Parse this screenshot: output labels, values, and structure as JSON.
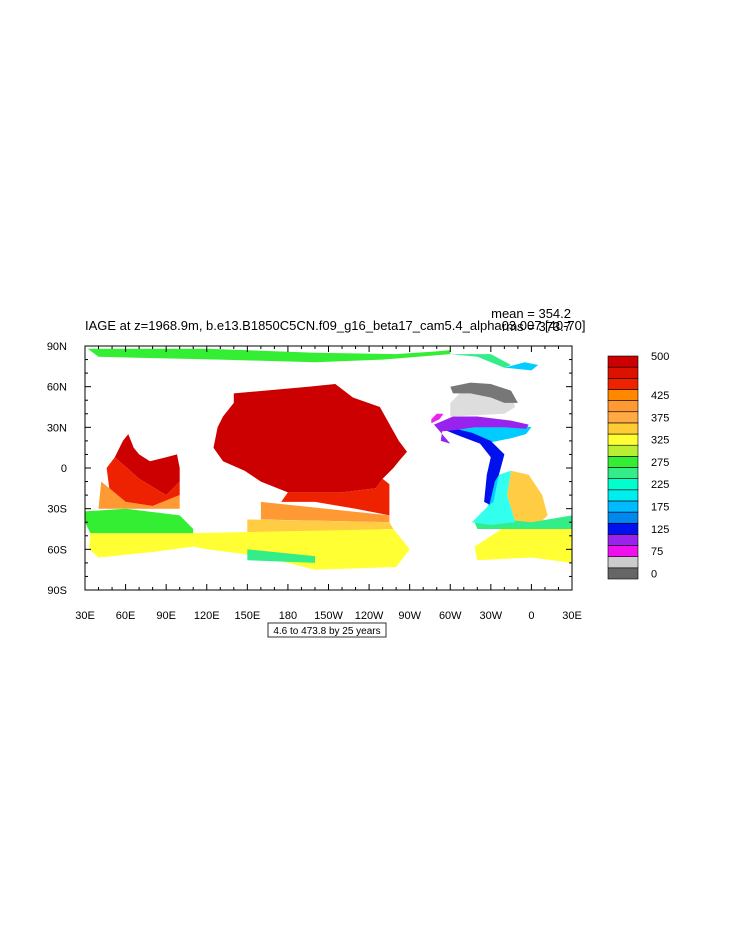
{
  "figure": {
    "title": "IAGE at z=1968.9m, b.e13.B1850C5CN.f09_g16_beta17_cam5.4_alpha03.007 [40-70]",
    "stats": {
      "mean": "mean = 354.2",
      "rms": "rms = 373.7"
    },
    "contour_info": "4.6 to 473.8 by 25 years"
  },
  "map": {
    "type": "filled-contour-map",
    "projection": "cylindrical-equidistant",
    "lon_range": [
      30,
      390
    ],
    "lat_range": [
      -90,
      90
    ],
    "lon_ticks": [
      {
        "value": 30,
        "label": "30E"
      },
      {
        "value": 60,
        "label": "60E"
      },
      {
        "value": 90,
        "label": "90E"
      },
      {
        "value": 120,
        "label": "120E"
      },
      {
        "value": 150,
        "label": "150E"
      },
      {
        "value": 180,
        "label": "180"
      },
      {
        "value": 210,
        "label": "150W"
      },
      {
        "value": 240,
        "label": "120W"
      },
      {
        "value": 270,
        "label": "90W"
      },
      {
        "value": 300,
        "label": "60W"
      },
      {
        "value": 330,
        "label": "30W"
      },
      {
        "value": 360,
        "label": "0"
      },
      {
        "value": 390,
        "label": "30E"
      }
    ],
    "lat_ticks": [
      {
        "value": 90,
        "label": "90N"
      },
      {
        "value": 60,
        "label": "60N"
      },
      {
        "value": 30,
        "label": "30N"
      },
      {
        "value": 0,
        "label": "0"
      },
      {
        "value": -30,
        "label": "30S"
      },
      {
        "value": -60,
        "label": "60S"
      },
      {
        "value": -90,
        "label": "90S"
      }
    ],
    "regions": [
      {
        "level": 475,
        "color": "#cc0000",
        "pts": [
          [
            140,
            55
          ],
          [
            195,
            60
          ],
          [
            215,
            62
          ],
          [
            228,
            52
          ],
          [
            248,
            45
          ],
          [
            262,
            20
          ],
          [
            268,
            12
          ],
          [
            262,
            5
          ],
          [
            258,
            0
          ],
          [
            250,
            -8
          ],
          [
            245,
            -15
          ],
          [
            220,
            -18
          ],
          [
            180,
            -18
          ],
          [
            160,
            -10
          ],
          [
            148,
            -2
          ],
          [
            132,
            5
          ],
          [
            125,
            15
          ],
          [
            128,
            30
          ],
          [
            132,
            38
          ],
          [
            140,
            48
          ]
        ]
      },
      {
        "level": 475,
        "color": "#cc0000",
        "pts": [
          [
            52,
            8
          ],
          [
            58,
            20
          ],
          [
            62,
            25
          ],
          [
            66,
            15
          ],
          [
            70,
            10
          ],
          [
            78,
            5
          ],
          [
            90,
            8
          ],
          [
            98,
            10
          ],
          [
            100,
            0
          ],
          [
            100,
            -10
          ],
          [
            90,
            -20
          ],
          [
            70,
            -8
          ]
        ]
      },
      {
        "level": 450,
        "color": "#ee2200",
        "pts": [
          [
            180,
            -18
          ],
          [
            220,
            -18
          ],
          [
            245,
            -15
          ],
          [
            250,
            -8
          ],
          [
            255,
            -12
          ],
          [
            255,
            -35
          ],
          [
            230,
            -30
          ],
          [
            200,
            -25
          ],
          [
            175,
            -25
          ]
        ]
      },
      {
        "level": 450,
        "color": "#ee2200",
        "pts": [
          [
            46,
            0
          ],
          [
            52,
            8
          ],
          [
            70,
            -8
          ],
          [
            90,
            -20
          ],
          [
            100,
            -10
          ],
          [
            100,
            -20
          ],
          [
            80,
            -28
          ],
          [
            60,
            -25
          ],
          [
            48,
            -15
          ]
        ]
      },
      {
        "level": 375,
        "color": "#ff9933",
        "pts": [
          [
            42,
            -10
          ],
          [
            48,
            -15
          ],
          [
            60,
            -25
          ],
          [
            80,
            -28
          ],
          [
            100,
            -20
          ],
          [
            100,
            -30
          ],
          [
            60,
            -30
          ],
          [
            40,
            -30
          ]
        ]
      },
      {
        "level": 375,
        "color": "#ff9933",
        "pts": [
          [
            160,
            -25
          ],
          [
            255,
            -35
          ],
          [
            255,
            -40
          ],
          [
            160,
            -38
          ]
        ]
      },
      {
        "level": 350,
        "color": "#ffcc44",
        "pts": [
          [
            150,
            -38
          ],
          [
            255,
            -40
          ],
          [
            258,
            -45
          ],
          [
            150,
            -48
          ]
        ]
      },
      {
        "level": 325,
        "color": "#ffff33",
        "pts": [
          [
            110,
            -48
          ],
          [
            258,
            -45
          ],
          [
            270,
            -60
          ],
          [
            260,
            -73
          ],
          [
            200,
            -75
          ],
          [
            160,
            -65
          ],
          [
            120,
            -60
          ],
          [
            110,
            -58
          ]
        ]
      },
      {
        "level": 325,
        "color": "#ffff33",
        "pts": [
          [
            34,
            -48
          ],
          [
            110,
            -48
          ],
          [
            110,
            -58
          ],
          [
            80,
            -62
          ],
          [
            40,
            -66
          ],
          [
            33,
            -60
          ]
        ]
      },
      {
        "level": 275,
        "color": "#33ee33",
        "pts": [
          [
            30,
            -32
          ],
          [
            60,
            -30
          ],
          [
            100,
            -35
          ],
          [
            110,
            -45
          ],
          [
            110,
            -48
          ],
          [
            34,
            -48
          ],
          [
            30,
            -40
          ]
        ]
      },
      {
        "level": 250,
        "color": "#33ee88",
        "pts": [
          [
            150,
            -60
          ],
          [
            200,
            -65
          ],
          [
            200,
            -70
          ],
          [
            150,
            -68
          ]
        ]
      },
      {
        "level": 325,
        "color": "#ffff33",
        "pts": [
          [
            338,
            -45
          ],
          [
            360,
            -42
          ],
          [
            390,
            -40
          ],
          [
            390,
            -70
          ],
          [
            360,
            -66
          ],
          [
            320,
            -68
          ],
          [
            318,
            -58
          ]
        ]
      },
      {
        "level": 300,
        "color": "#ffcc44",
        "pts": [
          [
            345,
            -2
          ],
          [
            358,
            -5
          ],
          [
            368,
            -20
          ],
          [
            372,
            -35
          ],
          [
            365,
            -42
          ],
          [
            348,
            -40
          ],
          [
            342,
            -20
          ]
        ]
      },
      {
        "level": 250,
        "color": "#33ee88",
        "pts": [
          [
            318,
            -40
          ],
          [
            340,
            -38
          ],
          [
            360,
            -40
          ],
          [
            390,
            -35
          ],
          [
            390,
            -45
          ],
          [
            360,
            -45
          ],
          [
            320,
            -45
          ]
        ]
      },
      {
        "level": 225,
        "color": "#33ffee",
        "pts": [
          [
            316,
            -40
          ],
          [
            328,
            -28
          ],
          [
            336,
            -5
          ],
          [
            345,
            -2
          ],
          [
            342,
            -20
          ],
          [
            348,
            -40
          ],
          [
            330,
            -42
          ]
        ]
      },
      {
        "level": 175,
        "color": "#00ccff",
        "pts": [
          [
            294,
            30
          ],
          [
            310,
            26
          ],
          [
            325,
            18
          ],
          [
            345,
            22
          ],
          [
            356,
            25
          ],
          [
            360,
            30
          ],
          [
            345,
            33
          ],
          [
            320,
            36
          ],
          [
            300,
            34
          ]
        ]
      },
      {
        "level": 175,
        "color": "#00ccff",
        "pts": [
          [
            328,
            -28
          ],
          [
            333,
            -10
          ],
          [
            334,
            5
          ],
          [
            336,
            -5
          ],
          [
            332,
            -25
          ]
        ]
      },
      {
        "level": 125,
        "color": "#0011ee",
        "pts": [
          [
            299,
            30
          ],
          [
            316,
            26
          ],
          [
            330,
            20
          ],
          [
            340,
            10
          ],
          [
            336,
            -5
          ],
          [
            333,
            -10
          ],
          [
            329,
            -27
          ],
          [
            325,
            -25
          ],
          [
            327,
            -5
          ],
          [
            330,
            8
          ],
          [
            322,
            18
          ],
          [
            306,
            24
          ],
          [
            296,
            28
          ]
        ]
      },
      {
        "level": 75,
        "color": "#9922ee",
        "pts": [
          [
            288,
            32
          ],
          [
            302,
            38
          ],
          [
            320,
            38
          ],
          [
            345,
            35
          ],
          [
            358,
            32
          ],
          [
            356,
            29
          ],
          [
            340,
            30
          ],
          [
            318,
            30
          ],
          [
            304,
            28
          ],
          [
            294,
            27
          ],
          [
            293,
            20
          ],
          [
            300,
            18
          ]
        ]
      },
      {
        "level": 50,
        "color": "#ee22ee",
        "pts": [
          [
            286,
            33
          ],
          [
            292,
            36
          ],
          [
            295,
            40
          ],
          [
            290,
            40
          ],
          [
            286,
            36
          ]
        ]
      },
      {
        "level": 25,
        "color": "#dddddd",
        "pts": [
          [
            300,
            38
          ],
          [
            300,
            48
          ],
          [
            310,
            58
          ],
          [
            330,
            60
          ],
          [
            345,
            55
          ],
          [
            348,
            45
          ],
          [
            340,
            40
          ],
          [
            320,
            39
          ]
        ]
      },
      {
        "level": 0,
        "color": "#777777",
        "pts": [
          [
            300,
            60
          ],
          [
            315,
            63
          ],
          [
            330,
            62
          ],
          [
            345,
            57
          ],
          [
            350,
            48
          ],
          [
            340,
            48
          ],
          [
            330,
            52
          ],
          [
            315,
            55
          ],
          [
            302,
            55
          ]
        ]
      },
      {
        "level": 275,
        "color": "#33ee33",
        "pts": [
          [
            32,
            88
          ],
          [
            120,
            88
          ],
          [
            200,
            85
          ],
          [
            260,
            84
          ],
          [
            290,
            86
          ],
          [
            300,
            87
          ],
          [
            300,
            84
          ],
          [
            250,
            80
          ],
          [
            200,
            78
          ],
          [
            130,
            80
          ],
          [
            40,
            82
          ]
        ]
      },
      {
        "level": 250,
        "color": "#33ee88",
        "pts": [
          [
            300,
            84
          ],
          [
            320,
            82
          ],
          [
            340,
            74
          ],
          [
            345,
            76
          ],
          [
            330,
            84
          ]
        ]
      },
      {
        "level": 175,
        "color": "#00ccff",
        "pts": [
          [
            340,
            74
          ],
          [
            360,
            72
          ],
          [
            365,
            76
          ],
          [
            355,
            78
          ]
        ]
      }
    ]
  },
  "colorbar": {
    "levels": [
      {
        "color": "#666666",
        "label": "0"
      },
      {
        "color": "#cccccc",
        "label": ""
      },
      {
        "color": "#ee11ee",
        "label": "75"
      },
      {
        "color": "#9922ee",
        "label": ""
      },
      {
        "color": "#0011ee",
        "label": "125"
      },
      {
        "color": "#0088ee",
        "label": ""
      },
      {
        "color": "#00bbff",
        "label": "175"
      },
      {
        "color": "#00eeee",
        "label": ""
      },
      {
        "color": "#00ffcc",
        "label": "225"
      },
      {
        "color": "#33ee88",
        "label": ""
      },
      {
        "color": "#33ee33",
        "label": "275"
      },
      {
        "color": "#bbee33",
        "label": ""
      },
      {
        "color": "#ffff33",
        "label": "325"
      },
      {
        "color": "#ffcc33",
        "label": ""
      },
      {
        "color": "#ffaa44",
        "label": "375"
      },
      {
        "color": "#ff9933",
        "label": ""
      },
      {
        "color": "#ff8800",
        "label": "425"
      },
      {
        "color": "#ee2200",
        "label": ""
      },
      {
        "color": "#dd1100",
        "label": ""
      },
      {
        "color": "#cc0000",
        "label": "500"
      }
    ]
  }
}
